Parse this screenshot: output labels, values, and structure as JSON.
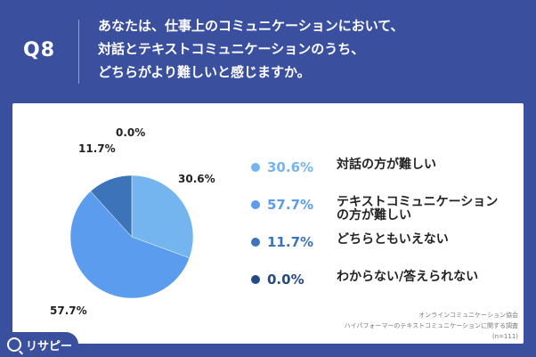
{
  "header": {
    "qnum": "Q8",
    "line1": "あなたは、仕事上のコミュニケーションにおいて、",
    "line2": "対話とテキストコミュニケーションのうち、",
    "line3": "どちらがより難しいと感じますか。"
  },
  "chart_data": {
    "type": "pie",
    "labels": [
      "対話の方が難しい",
      "テキストコミュニケーションの方が難しい",
      "どちらともいえない",
      "わからない/答えられない"
    ],
    "values": [
      30.6,
      57.7,
      11.7,
      0.0
    ],
    "value_labels": [
      "30.6%",
      "57.7%",
      "11.7%",
      "0.0%"
    ],
    "colors": [
      "#74b5f0",
      "#5b9cee",
      "#3d73b8",
      "#244a85"
    ]
  },
  "legend": [
    {
      "pct": "30.6%",
      "label_lines": [
        "対話の方が難しい"
      ]
    },
    {
      "pct": "57.7%",
      "label_lines": [
        "テキストコミュニケーション",
        "の方が難しい"
      ]
    },
    {
      "pct": "11.7%",
      "label_lines": [
        "どちらともいえない"
      ]
    },
    {
      "pct": "0.0%",
      "label_lines": [
        "わからない/答えられない"
      ]
    }
  ],
  "source": {
    "line1": "オンラインコミュニケーション協会",
    "line2": "ハイパフォーマーのテキストコミュニケーションに関する調査",
    "line3": "(n=111)"
  },
  "brand": {
    "name": "リサピー",
    "icon": "magnifier-icon"
  }
}
